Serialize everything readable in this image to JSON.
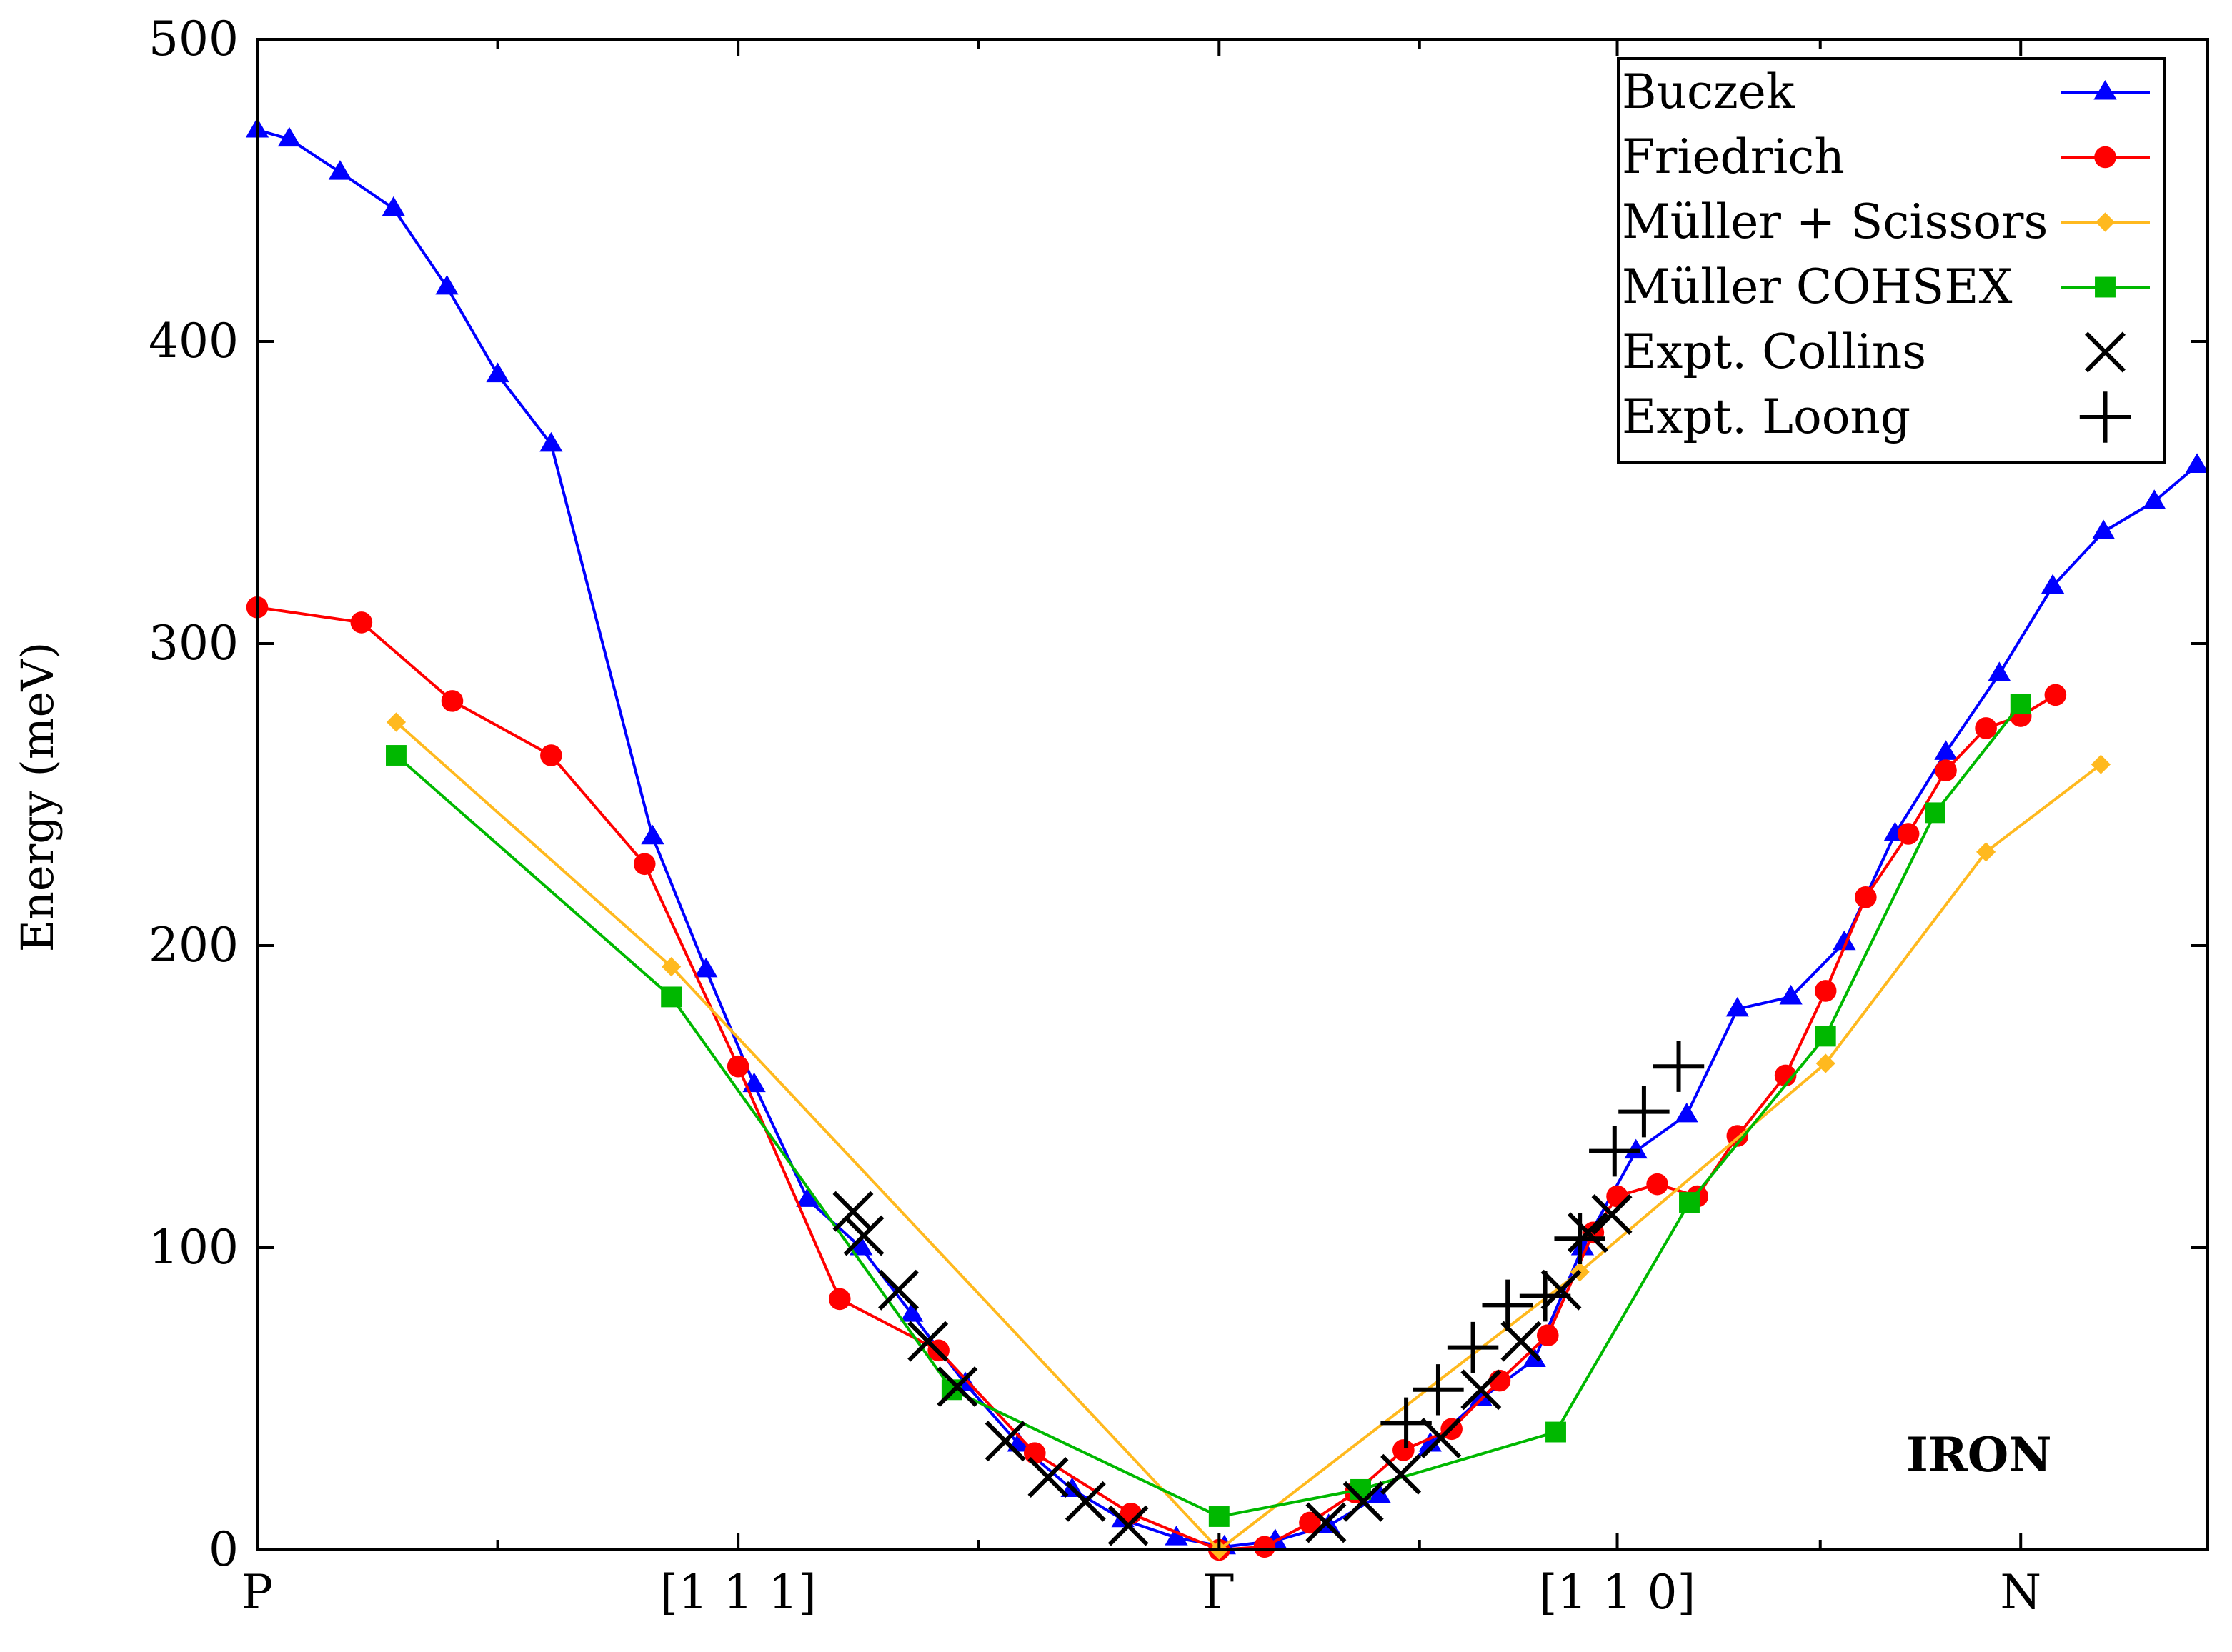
{
  "chart_data": {
    "type": "line",
    "title": "",
    "annotation": "IRON",
    "xlabel": "",
    "ylabel": "Energy (meV)",
    "xlim": [
      0,
      7.3
    ],
    "ylim": [
      0,
      500
    ],
    "y_ticks": [
      0,
      100,
      200,
      300,
      400,
      500
    ],
    "x_ticks": [
      {
        "x": 0,
        "label": "P"
      },
      {
        "x": 1.8,
        "label": "[1 1 1]"
      },
      {
        "x": 3.6,
        "label": "Γ"
      },
      {
        "x": 5.09,
        "label": "[1 1 0]"
      },
      {
        "x": 6.6,
        "label": "N"
      }
    ],
    "x_minor_ticks": [
      0.9,
      2.7,
      4.35,
      5.85
    ],
    "legend_position": "top-right",
    "series": [
      {
        "name": "Buczek",
        "color": "#0000ff",
        "marker": "triangle",
        "line": true,
        "x": [
          0,
          0.12,
          0.31,
          0.51,
          0.71,
          0.9,
          1.1,
          1.48,
          1.68,
          1.86,
          2.06,
          2.26,
          2.45,
          2.65,
          2.85,
          3.05,
          3.24,
          3.44,
          3.62,
          3.81,
          4.01,
          4.2,
          4.39,
          4.58,
          4.78,
          4.96,
          5.16,
          5.35,
          5.54,
          5.74,
          5.94,
          6.13,
          6.32,
          6.52,
          6.72,
          6.91,
          7.1,
          7.26
        ],
        "values": [
          470,
          467,
          456,
          444,
          418,
          389,
          366,
          236,
          192,
          154,
          116,
          100,
          78,
          55,
          35,
          20,
          10,
          4,
          1,
          3,
          8,
          18,
          35,
          50,
          63,
          100,
          132,
          144,
          179,
          183,
          201,
          237,
          264,
          290,
          319,
          337,
          347,
          359
        ]
      },
      {
        "name": "Friedrich",
        "color": "#ff0000",
        "marker": "circle",
        "line": true,
        "x": [
          0,
          0.39,
          0.73,
          1.1,
          1.45,
          1.8,
          2.18,
          2.55,
          2.91,
          3.27,
          3.6,
          3.77,
          3.94,
          4.11,
          4.29,
          4.47,
          4.65,
          4.83,
          5.0,
          5.09,
          5.24,
          5.39,
          5.54,
          5.72,
          5.87,
          6.02,
          6.18,
          6.32,
          6.47,
          6.6,
          6.73
        ],
        "values": [
          312,
          307,
          281,
          263,
          227,
          160,
          83,
          66,
          32,
          12,
          0,
          1,
          9,
          19,
          33,
          40,
          56,
          71,
          105,
          117,
          121,
          117,
          137,
          157,
          185,
          216,
          237,
          258,
          272,
          276,
          283
        ]
      },
      {
        "name": "Müller + Scissors",
        "color": "#ffb91f",
        "marker": "diamond",
        "line": true,
        "x": [
          0.52,
          1.55,
          3.6,
          4.95,
          5.87,
          6.47,
          6.9
        ],
        "values": [
          274,
          193,
          0,
          92,
          161,
          231,
          260
        ]
      },
      {
        "name": "Müller COHSEX",
        "color": "#00b800",
        "marker": "square",
        "line": true,
        "x": [
          0.52,
          1.55,
          2.6,
          3.6,
          4.13,
          4.86,
          5.36,
          5.87,
          6.28,
          6.6
        ],
        "values": [
          263,
          183,
          53,
          11,
          20,
          39,
          115,
          170,
          244,
          280
        ]
      },
      {
        "name": "Expt. Collins",
        "color": "#000000",
        "marker": "x",
        "line": false,
        "x": [
          2.23,
          2.27,
          2.4,
          2.51,
          2.62,
          2.8,
          2.96,
          3.1,
          3.26,
          4.0,
          4.14,
          4.28,
          4.43,
          4.58,
          4.73,
          4.88,
          4.98,
          5.07
        ],
        "values": [
          112,
          104,
          86,
          69,
          54,
          36,
          24,
          16,
          8,
          9,
          16,
          25,
          37,
          53,
          69,
          86,
          105,
          111
        ]
      },
      {
        "name": "Expt. Loong",
        "color": "#000000",
        "marker": "plus",
        "line": true,
        "x": [
          4.3,
          4.42,
          4.55,
          4.68,
          4.82,
          4.95,
          5.08,
          5.19,
          5.32
        ],
        "values": [
          42,
          53,
          67,
          81,
          84,
          103,
          132,
          145,
          160
        ]
      }
    ]
  }
}
